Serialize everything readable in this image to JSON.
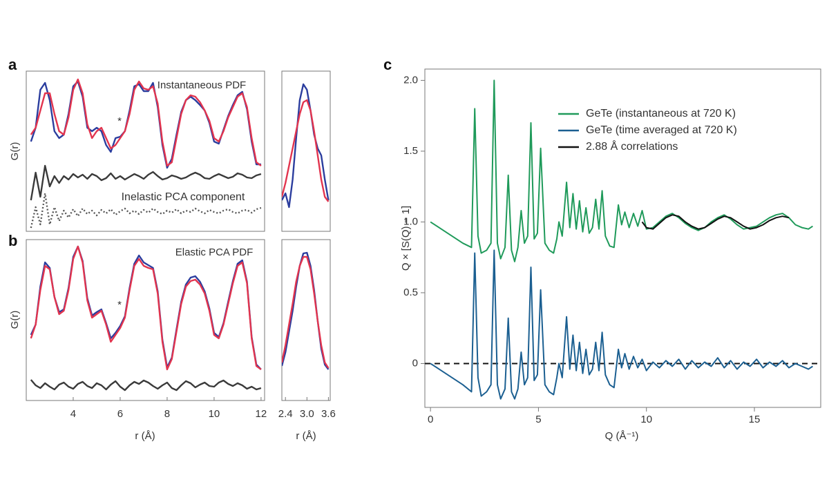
{
  "chart_data": [
    {
      "panel": "a",
      "type": "line",
      "ylabel": "G(r)",
      "xlim": [
        2.0,
        12.15
      ],
      "ylim": [
        0,
        23.2
      ],
      "annotations": [
        "Instantaneous PDF",
        "*"
      ],
      "x": [
        2.2,
        2.4,
        2.6,
        2.8,
        3.0,
        3.2,
        3.4,
        3.6,
        3.8,
        4.0,
        4.2,
        4.4,
        4.6,
        4.8,
        5.0,
        5.2,
        5.4,
        5.6,
        5.8,
        6.0,
        6.2,
        6.4,
        6.6,
        6.8,
        7.0,
        7.2,
        7.4,
        7.6,
        7.8,
        8.0,
        8.2,
        8.4,
        8.6,
        8.8,
        9.0,
        9.2,
        9.4,
        9.6,
        9.8,
        10.0,
        10.2,
        10.4,
        10.6,
        10.8,
        11.0,
        11.2,
        11.4,
        11.6,
        11.8,
        12.0
      ],
      "series": [
        {
          "color": "#2b3d9e",
          "style": "solid",
          "values": [
            13,
            15,
            20.5,
            21.5,
            19,
            14.5,
            13.5,
            14,
            17,
            21,
            21.7,
            19.5,
            15,
            14.5,
            15,
            14.5,
            12.5,
            11.5,
            13.5,
            13.7,
            14.5,
            17.5,
            21,
            21.3,
            20.3,
            20.3,
            21.5,
            18,
            12.5,
            9.2,
            10.5,
            14,
            17.3,
            19,
            19.5,
            19,
            18.3,
            17.5,
            15.7,
            13,
            12.7,
            14.7,
            16.7,
            18.3,
            19.7,
            20.2,
            17.7,
            13,
            9.7,
            9.7
          ]
        },
        {
          "color": "#e2344e",
          "style": "solid",
          "values": [
            14,
            15,
            17.5,
            20,
            20,
            17,
            14.5,
            14,
            16.5,
            20.5,
            22,
            20,
            15.5,
            13.5,
            14.5,
            15,
            13.5,
            12,
            12.5,
            13.5,
            14.5,
            17,
            20.5,
            21.7,
            20.7,
            20.5,
            21,
            18.5,
            13,
            9.5,
            10,
            13.5,
            17,
            19,
            19.7,
            19.5,
            18.7,
            17.5,
            16,
            13.5,
            13,
            14.5,
            16.5,
            18,
            19.5,
            20,
            18,
            13.5,
            10,
            9.5
          ]
        },
        {
          "color": "#3a3a3a",
          "style": "solid",
          "values": [
            4.5,
            8.5,
            5,
            9.5,
            6.5,
            8,
            7,
            8,
            7.5,
            8.3,
            7.8,
            8.2,
            7.6,
            8.3,
            8.0,
            7.4,
            7.7,
            8.4,
            7.6,
            8.0,
            7.5,
            7.9,
            8.3,
            8.0,
            7.6,
            8.2,
            8.6,
            8.0,
            7.5,
            7.7,
            8.1,
            7.9,
            7.6,
            7.8,
            8.2,
            8.5,
            8.2,
            7.7,
            7.6,
            8.0,
            8.3,
            8.0,
            7.7,
            7.9,
            8.4,
            8.2,
            7.8,
            7.7,
            8.1,
            8.3
          ]
        },
        {
          "name": "Inelastic PCA component",
          "color": "#555555",
          "style": "dotted",
          "values": [
            0.5,
            3.5,
            1,
            5.5,
            1,
            3.5,
            1.5,
            3,
            2,
            3.2,
            2.2,
            3.3,
            2.5,
            3.0,
            2.3,
            3.1,
            2.6,
            3.2,
            2.4,
            2.9,
            3.3,
            2.6,
            3.0,
            2.5,
            3.1,
            2.7,
            3.3,
            2.8,
            2.5,
            3.0,
            2.7,
            3.2,
            2.6,
            3.0,
            2.8,
            3.3,
            2.9,
            2.6,
            3.1,
            2.8,
            2.6,
            3.0,
            3.2,
            2.8,
            2.6,
            3.0,
            3.1,
            2.7,
            3.2,
            3.4
          ]
        }
      ]
    },
    {
      "type": "line",
      "xlim": [
        2.3,
        3.65
      ],
      "ylim": [
        0,
        23.2
      ],
      "x": [
        2.3,
        2.4,
        2.5,
        2.6,
        2.7,
        2.8,
        2.9,
        3.0,
        3.1,
        3.2,
        3.3,
        3.4,
        3.5,
        3.6
      ],
      "series": [
        {
          "color": "#2b3d9e",
          "style": "solid",
          "values": [
            4.5,
            5.5,
            3.5,
            7.5,
            13.5,
            19,
            21.3,
            20.5,
            17.5,
            14,
            12,
            11,
            7.5,
            4.5
          ]
        },
        {
          "color": "#e2344e",
          "style": "solid",
          "values": [
            5,
            7,
            9.5,
            12,
            14.5,
            17,
            18.7,
            19,
            17.5,
            14.5,
            11,
            7.5,
            5,
            4.3
          ]
        }
      ]
    },
    {
      "panel": "b",
      "type": "line",
      "ylabel": "G(r)",
      "xlabel": "r (Å)",
      "xlim": [
        2.0,
        12.15
      ],
      "ylim": [
        0,
        23.3
      ],
      "xticks": [
        4,
        6,
        8,
        10,
        12
      ],
      "annotations": [
        "Elastic PCA PDF",
        "*"
      ],
      "x": [
        2.2,
        2.4,
        2.6,
        2.8,
        3.0,
        3.2,
        3.4,
        3.6,
        3.8,
        4.0,
        4.2,
        4.4,
        4.6,
        4.8,
        5.0,
        5.2,
        5.4,
        5.6,
        5.8,
        6.0,
        6.2,
        6.4,
        6.6,
        6.8,
        7.0,
        7.2,
        7.4,
        7.6,
        7.8,
        8.0,
        8.2,
        8.4,
        8.6,
        8.8,
        9.0,
        9.2,
        9.4,
        9.6,
        9.8,
        10.0,
        10.2,
        10.4,
        10.6,
        10.8,
        11.0,
        11.2,
        11.4,
        11.6,
        11.8,
        12.0
      ],
      "series": [
        {
          "color": "#2b3d9e",
          "style": "solid",
          "values": [
            9.5,
            11,
            16.5,
            20,
            19.2,
            15,
            12.8,
            13.2,
            16.3,
            20.8,
            22.3,
            20.2,
            14.8,
            12.3,
            12.8,
            13.2,
            11.2,
            9,
            9.8,
            10.8,
            12.2,
            16.3,
            19.8,
            21,
            20,
            19.6,
            19.2,
            15.8,
            8.8,
            4.8,
            6.2,
            10.3,
            14.3,
            16.8,
            17.8,
            18,
            17.2,
            15.8,
            13.3,
            9.8,
            9.2,
            11.2,
            14.3,
            17.3,
            19.8,
            20.3,
            17.2,
            9.2,
            5.2,
            4.5
          ]
        },
        {
          "color": "#e2344e",
          "style": "solid",
          "values": [
            9,
            11,
            16,
            19.5,
            19,
            15,
            12.5,
            13,
            16,
            20.5,
            22.3,
            20,
            14.5,
            12,
            12.5,
            13,
            11,
            8.5,
            9.5,
            10.5,
            12,
            16,
            19.5,
            20.5,
            19.5,
            19.2,
            19,
            15.5,
            8.5,
            4.5,
            6,
            10,
            14,
            16.5,
            17.3,
            17.5,
            16.8,
            15.5,
            13,
            9.5,
            9,
            11,
            14,
            17,
            19.5,
            20,
            17,
            9,
            5,
            4.5
          ]
        },
        {
          "color": "#3a3a3a",
          "style": "solid",
          "values": [
            3,
            2.2,
            1.8,
            2.5,
            2.0,
            1.6,
            2.3,
            2.6,
            2.0,
            1.7,
            2.4,
            2.7,
            2.1,
            1.8,
            2.5,
            2.2,
            1.6,
            2.3,
            2.8,
            2.0,
            1.5,
            2.2,
            2.7,
            2.4,
            2.9,
            2.6,
            2.1,
            1.7,
            2.2,
            2.6,
            1.8,
            1.5,
            2.2,
            2.8,
            2.5,
            1.9,
            2.3,
            2.6,
            2.1,
            2.0,
            2.6,
            2.9,
            2.4,
            2.1,
            2.5,
            2.2,
            1.7,
            2.0,
            1.6,
            1.8
          ]
        }
      ]
    },
    {
      "type": "line",
      "xlabel": "r (Å)",
      "xlim": [
        2.3,
        3.65
      ],
      "ylim": [
        0,
        23.3
      ],
      "xticks": [
        2.4,
        {
          "value": 3,
          "label": "3.0"
        },
        3.6
      ],
      "x": [
        2.3,
        2.4,
        2.5,
        2.6,
        2.7,
        2.8,
        2.9,
        3.0,
        3.1,
        3.2,
        3.3,
        3.4,
        3.5,
        3.6
      ],
      "series": [
        {
          "color": "#2b3d9e",
          "style": "solid",
          "values": [
            5,
            7,
            10,
            13,
            16.5,
            19.5,
            21.3,
            21.4,
            19.5,
            16,
            11.5,
            7.5,
            5.2,
            4.5
          ]
        },
        {
          "color": "#e2344e",
          "style": "solid",
          "values": [
            5.5,
            8,
            11,
            14,
            17.2,
            19.5,
            20.8,
            20.8,
            19,
            15.5,
            11.5,
            8,
            5.5,
            4.7
          ]
        }
      ]
    },
    {
      "panel": "c",
      "type": "line",
      "xlabel": "Q (Å⁻¹)",
      "ylabel": "Q × [S(Q) − 1]",
      "xlim": [
        -0.26,
        18.07
      ],
      "ylim": [
        -0.31,
        2.08
      ],
      "xticks": [
        0,
        5,
        10,
        15
      ],
      "yticks": [
        0,
        0.5,
        {
          "value": 1,
          "label": "1.0"
        },
        1.5,
        {
          "value": 2,
          "label": "2.0"
        }
      ],
      "reference_line": {
        "y": 0,
        "style": "dashed"
      },
      "legend": "upper right",
      "x": [
        0,
        0.5,
        1.0,
        1.5,
        1.9,
        2.05,
        2.2,
        2.35,
        2.6,
        2.8,
        2.95,
        3.1,
        3.25,
        3.45,
        3.6,
        3.75,
        3.9,
        4.05,
        4.2,
        4.35,
        4.5,
        4.65,
        4.8,
        4.95,
        5.1,
        5.3,
        5.5,
        5.7,
        5.85,
        5.95,
        6.1,
        6.3,
        6.45,
        6.6,
        6.75,
        6.9,
        7.05,
        7.2,
        7.35,
        7.5,
        7.65,
        7.8,
        7.95,
        8.1,
        8.3,
        8.5,
        8.7,
        8.85,
        9.0,
        9.2,
        9.4,
        9.6,
        9.8,
        10.0,
        10.3,
        10.6,
        10.9,
        11.2,
        11.5,
        11.8,
        12.1,
        12.4,
        12.7,
        13.0,
        13.3,
        13.6,
        13.9,
        14.2,
        14.5,
        14.8,
        15.1,
        15.4,
        15.7,
        16.0,
        16.3,
        16.6,
        16.9,
        17.2,
        17.5,
        17.7
      ],
      "series": [
        {
          "name": "GeTe (instantaneous at 720 K)",
          "color": "#1f9a5a",
          "style": "solid",
          "values": [
            1.0,
            0.95,
            0.9,
            0.85,
            0.82,
            1.8,
            0.9,
            0.78,
            0.8,
            0.85,
            2.0,
            0.85,
            0.74,
            0.82,
            1.33,
            0.8,
            0.72,
            0.82,
            1.08,
            0.85,
            0.9,
            1.7,
            0.88,
            0.92,
            1.52,
            0.85,
            0.8,
            0.78,
            0.88,
            1.0,
            0.9,
            1.28,
            0.96,
            1.2,
            0.95,
            1.15,
            0.93,
            1.1,
            0.92,
            0.96,
            1.16,
            0.95,
            1.22,
            0.9,
            0.83,
            0.82,
            1.12,
            0.98,
            1.07,
            0.96,
            1.06,
            0.97,
            1.08,
            0.95,
            0.96,
            1.0,
            1.04,
            1.06,
            1.03,
            0.99,
            0.96,
            0.94,
            0.96,
            1.0,
            1.03,
            1.05,
            1.02,
            0.98,
            0.95,
            0.96,
            0.97,
            1.0,
            1.03,
            1.05,
            1.06,
            1.03,
            0.98,
            0.96,
            0.95,
            0.97
          ]
        },
        {
          "name": "GeTe (time averaged at 720 K)",
          "color": "#1b5f91",
          "style": "solid",
          "values": [
            0,
            -0.05,
            -0.1,
            -0.15,
            -0.2,
            0.78,
            -0.1,
            -0.23,
            -0.2,
            -0.15,
            0.8,
            -0.15,
            -0.25,
            -0.18,
            0.32,
            -0.2,
            -0.25,
            -0.18,
            0.08,
            -0.15,
            -0.1,
            0.68,
            -0.12,
            -0.08,
            0.52,
            -0.15,
            -0.2,
            -0.22,
            -0.1,
            0.0,
            -0.1,
            0.33,
            -0.04,
            0.2,
            -0.05,
            0.15,
            -0.07,
            0.1,
            -0.08,
            -0.04,
            0.15,
            -0.05,
            0.22,
            -0.08,
            -0.15,
            -0.17,
            0.1,
            -0.03,
            0.07,
            -0.04,
            0.05,
            -0.03,
            0.03,
            -0.05,
            0.01,
            -0.03,
            0.02,
            -0.02,
            0.03,
            -0.04,
            0.02,
            -0.03,
            0.01,
            -0.02,
            0.04,
            -0.03,
            0.02,
            -0.04,
            0.01,
            -0.02,
            0.03,
            -0.03,
            0.01,
            -0.02,
            0.02,
            -0.03,
            0.0,
            -0.02,
            -0.04,
            -0.02
          ]
        },
        {
          "name": "2.88 Å correlations",
          "color": "#111111",
          "style": "solid",
          "values": [
            null,
            null,
            null,
            null,
            null,
            null,
            null,
            null,
            null,
            null,
            null,
            null,
            null,
            null,
            null,
            null,
            null,
            null,
            null,
            null,
            null,
            null,
            null,
            null,
            null,
            null,
            null,
            null,
            null,
            null,
            null,
            null,
            null,
            null,
            null,
            null,
            null,
            null,
            null,
            null,
            null,
            null,
            null,
            null,
            null,
            null,
            null,
            null,
            null,
            null,
            null,
            null,
            1.0,
            0.96,
            0.95,
            0.99,
            1.03,
            1.05,
            1.04,
            1.0,
            0.97,
            0.95,
            0.96,
            0.99,
            1.02,
            1.04,
            1.03,
            1.0,
            0.97,
            0.95,
            0.96,
            0.98,
            1.01,
            1.03,
            1.04,
            1.03,
            null,
            null,
            null,
            null
          ]
        }
      ]
    }
  ]
}
